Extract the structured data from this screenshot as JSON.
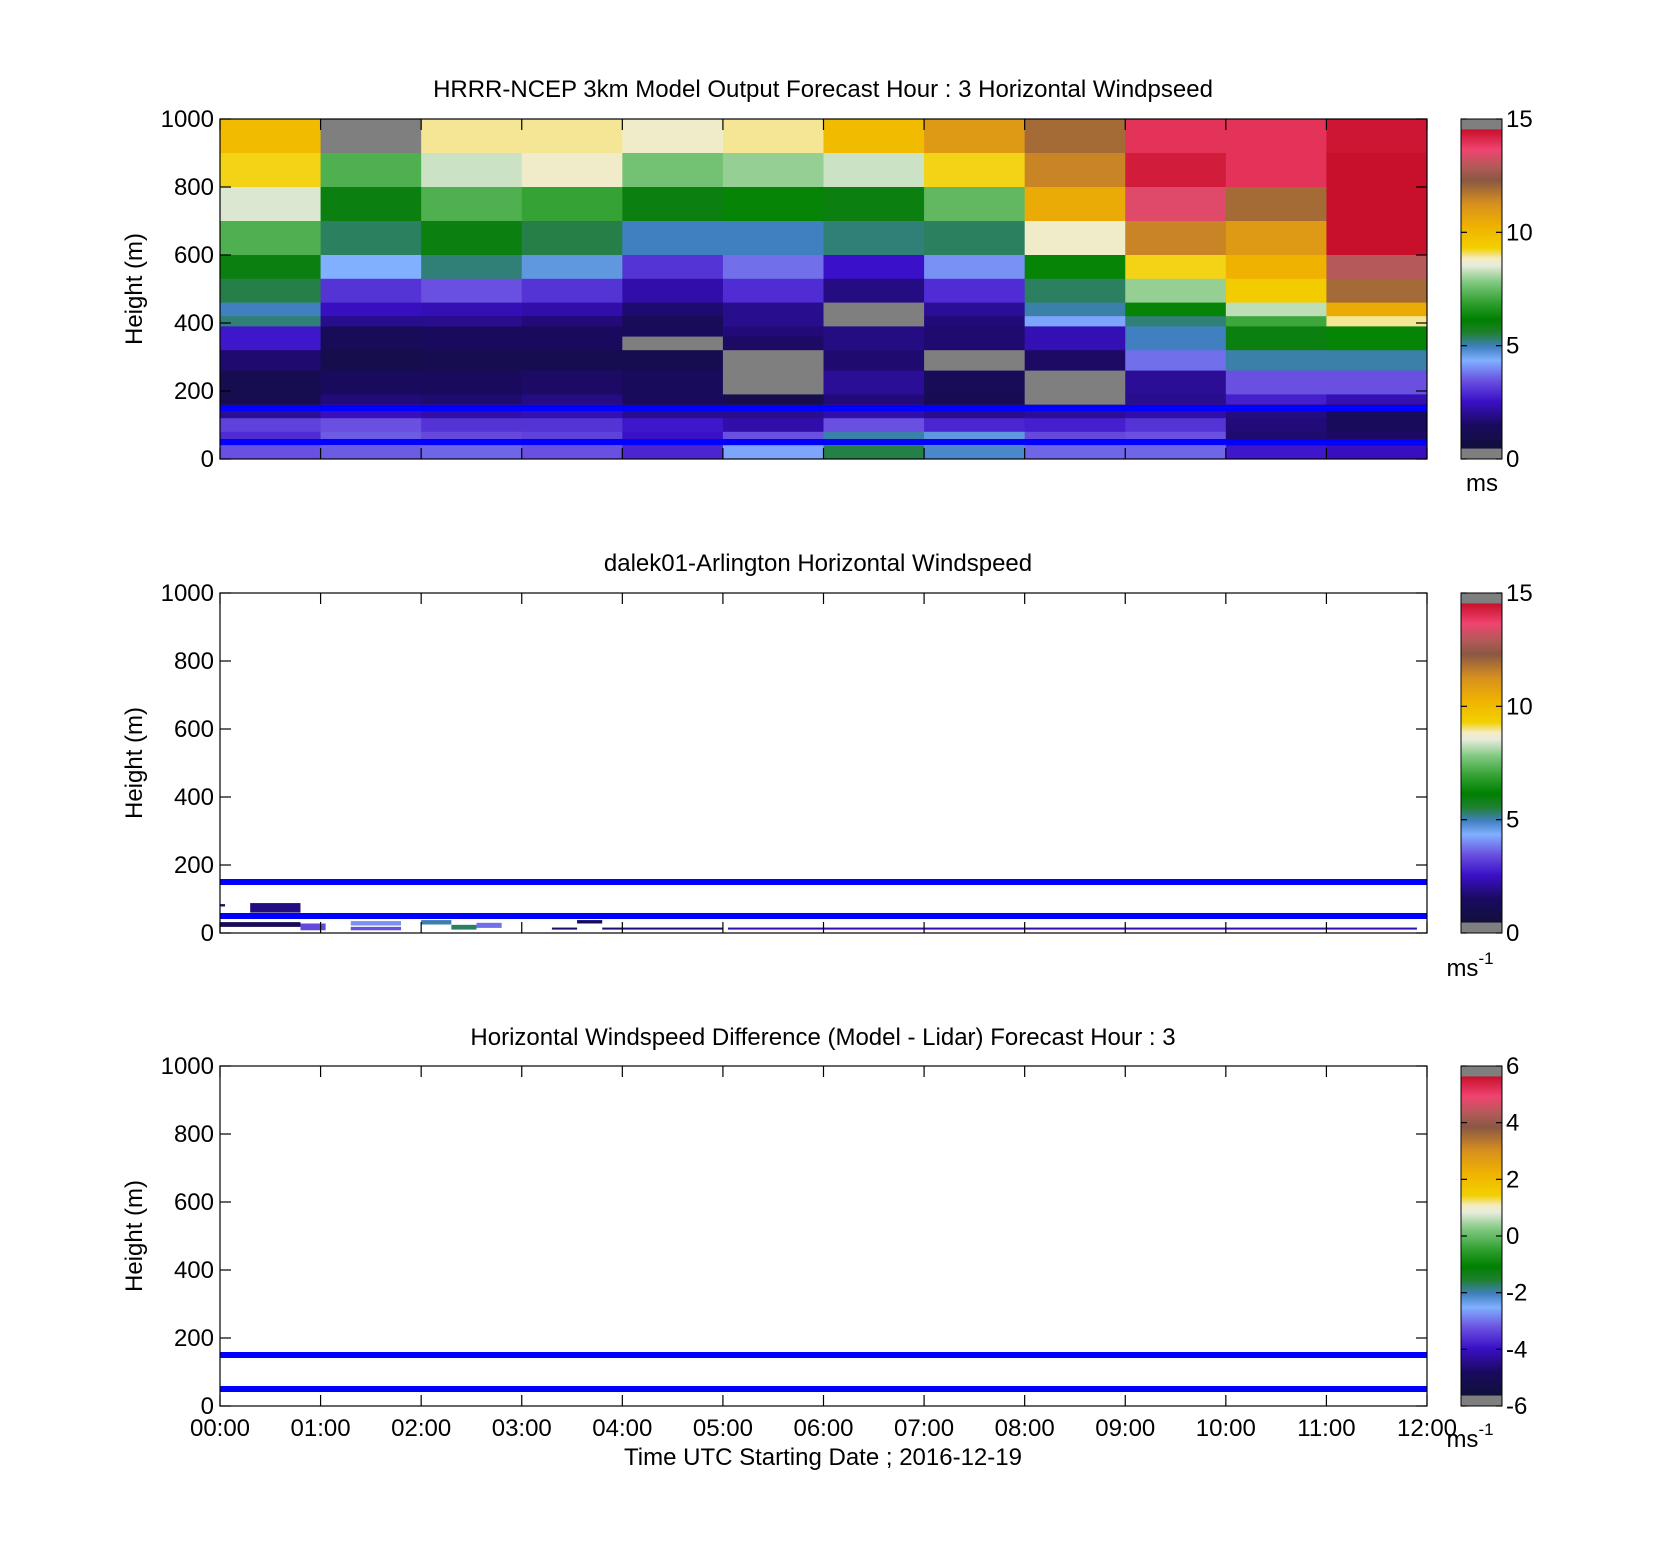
{
  "figure": {
    "xlabel": "Time UTC  Starting Date ; 2016-12-19",
    "x_ticks": [
      "00:00",
      "01:00",
      "02:00",
      "03:00",
      "04:00",
      "05:00",
      "06:00",
      "07:00",
      "08:00",
      "09:00",
      "10:00",
      "11:00",
      "12:00"
    ],
    "reference_line_color": "#0000ff"
  },
  "chart_data": [
    {
      "type": "heatmap",
      "title": "HRRR-NCEP 3km Model Output   Forecast Hour : 3 Horizontal Windpseed",
      "ylabel": "Height (m)",
      "xlim": [
        "00:00",
        "12:00"
      ],
      "ylim": [
        0,
        1000
      ],
      "y_ticks": [
        0,
        200,
        400,
        600,
        800,
        1000
      ],
      "colorbar": {
        "min": 0,
        "max": 15,
        "ticks": [
          0,
          5,
          10,
          15
        ],
        "unit": "ms"
      },
      "reference_lines_m": [
        50,
        150
      ],
      "columns": [
        "00:00",
        "01:00",
        "02:00",
        "03:00",
        "04:00",
        "05:00",
        "06:00",
        "07:00",
        "08:00",
        "09:00",
        "10:00",
        "11:00"
      ],
      "height_bins_m": [
        [
          950,
          1000
        ],
        [
          900,
          950
        ],
        [
          850,
          900
        ],
        [
          800,
          850
        ],
        [
          750,
          800
        ],
        [
          700,
          750
        ],
        [
          650,
          700
        ],
        [
          600,
          650
        ],
        [
          560,
          600
        ],
        [
          530,
          560
        ],
        [
          490,
          530
        ],
        [
          460,
          490
        ],
        [
          420,
          460
        ],
        [
          390,
          420
        ],
        [
          360,
          390
        ],
        [
          320,
          360
        ],
        [
          290,
          320
        ],
        [
          260,
          290
        ],
        [
          220,
          260
        ],
        [
          190,
          220
        ],
        [
          160,
          190
        ],
        [
          120,
          160
        ],
        [
          80,
          120
        ],
        [
          40,
          80
        ],
        [
          0,
          40
        ]
      ],
      "values": [
        [
          9.5,
          15.5,
          8.5,
          8.5,
          8.3,
          8.5,
          9.5,
          10.5,
          11.5,
          13.5,
          13.5,
          14.0
        ],
        [
          9.5,
          15.5,
          8.5,
          8.5,
          8.3,
          8.5,
          9.5,
          10.5,
          11.5,
          13.5,
          13.5,
          14.0
        ],
        [
          8.8,
          6.8,
          7.9,
          8.3,
          7.2,
          7.5,
          7.9,
          8.8,
          11.0,
          13.9,
          13.5,
          14.3
        ],
        [
          8.8,
          6.8,
          7.9,
          8.3,
          7.2,
          7.5,
          7.9,
          8.8,
          11.0,
          13.9,
          13.5,
          14.3
        ],
        [
          8.0,
          5.5,
          6.8,
          6.5,
          5.5,
          5.8,
          5.5,
          7.0,
          10.0,
          13.0,
          11.5,
          14.3
        ],
        [
          8.0,
          5.5,
          6.8,
          6.5,
          5.5,
          5.8,
          5.5,
          7.0,
          10.0,
          13.0,
          11.5,
          14.3
        ],
        [
          6.8,
          4.9,
          5.5,
          5.0,
          4.5,
          4.5,
          4.8,
          4.9,
          8.3,
          11.0,
          10.5,
          14.3
        ],
        [
          6.8,
          4.9,
          5.5,
          5.0,
          4.5,
          4.5,
          4.8,
          4.9,
          8.3,
          11.0,
          10.5,
          14.3
        ],
        [
          5.5,
          3.9,
          4.8,
          4.2,
          2.6,
          3.3,
          2.1,
          3.6,
          5.8,
          8.8,
          9.8,
          12.5
        ],
        [
          5.5,
          3.9,
          4.8,
          4.2,
          2.6,
          3.3,
          2.1,
          3.6,
          5.8,
          8.8,
          9.8,
          12.5
        ],
        [
          5.0,
          2.6,
          3.0,
          2.6,
          1.8,
          2.5,
          1.4,
          2.5,
          4.9,
          7.5,
          9.0,
          11.5
        ],
        [
          5.0,
          2.6,
          3.0,
          2.6,
          1.8,
          2.5,
          1.4,
          2.5,
          4.9,
          7.5,
          9.0,
          11.5
        ],
        [
          4.5,
          2.0,
          1.9,
          1.8,
          1.2,
          1.5,
          15.5,
          1.6,
          4.6,
          5.8,
          7.8,
          10.0
        ],
        [
          4.8,
          1.5,
          1.5,
          1.3,
          0.8,
          1.5,
          15.5,
          1.3,
          3.8,
          4.8,
          6.6,
          8.5
        ],
        [
          2.2,
          0.8,
          1.0,
          1.0,
          0.9,
          1.3,
          1.4,
          1.2,
          1.9,
          4.5,
          5.5,
          5.8
        ],
        [
          2.2,
          0.8,
          1.0,
          1.0,
          15.5,
          1.1,
          1.4,
          1.2,
          1.9,
          4.5,
          5.5,
          5.8
        ],
        [
          1.2,
          0.5,
          0.6,
          0.6,
          0.6,
          15.5,
          1.2,
          15.5,
          1.1,
          3.3,
          4.6,
          4.6
        ],
        [
          1.2,
          0.5,
          0.6,
          0.6,
          0.6,
          15.5,
          1.2,
          15.5,
          1.1,
          3.3,
          4.6,
          4.6
        ],
        [
          0.6,
          1.0,
          1.0,
          1.1,
          0.9,
          15.5,
          1.6,
          0.8,
          15.5,
          1.6,
          3.0,
          3.0
        ],
        [
          0.6,
          1.0,
          1.0,
          1.1,
          0.9,
          15.5,
          1.6,
          0.8,
          15.5,
          1.6,
          3.0,
          3.0
        ],
        [
          0.6,
          1.3,
          1.2,
          1.4,
          1.0,
          0.5,
          1.3,
          0.7,
          15.5,
          1.5,
          2.3,
          1.9
        ],
        [
          1.6,
          2.0,
          1.8,
          1.9,
          1.5,
          1.5,
          1.8,
          1.5,
          1.6,
          1.8,
          1.4,
          0.9
        ],
        [
          2.8,
          3.0,
          2.6,
          2.6,
          2.2,
          1.8,
          3.0,
          2.4,
          2.3,
          2.6,
          1.3,
          0.9
        ],
        [
          2.5,
          3.1,
          2.9,
          2.8,
          2.1,
          3.0,
          4.6,
          4.2,
          2.9,
          3.0,
          1.2,
          1.1
        ],
        [
          3.0,
          3.1,
          3.2,
          3.0,
          2.4,
          3.8,
          5.0,
          4.4,
          3.2,
          3.2,
          2.2,
          2.0
        ]
      ]
    },
    {
      "type": "heatmap",
      "title": "dalek01-Arlington  Horizontal Windspeed",
      "ylabel": "Height (m)",
      "xlim": [
        "00:00",
        "12:00"
      ],
      "ylim": [
        0,
        1000
      ],
      "y_ticks": [
        0,
        200,
        400,
        600,
        800,
        1000
      ],
      "colorbar": {
        "min": 0,
        "max": 15,
        "ticks": [
          0,
          5,
          10,
          15
        ],
        "unit": "ms",
        "unit_exponent": "-1"
      },
      "reference_lines_m": [
        50,
        150
      ],
      "segments": [
        {
          "t_start": 0.0,
          "t_end": 0.05,
          "h_start": 78,
          "h_end": 85,
          "value": 1.2
        },
        {
          "t_start": 0.3,
          "t_end": 0.8,
          "h_start": 60,
          "h_end": 88,
          "value": 1.4
        },
        {
          "t_start": 0.0,
          "t_end": 0.8,
          "h_start": 18,
          "h_end": 32,
          "value": 0.8
        },
        {
          "t_start": 0.8,
          "t_end": 1.05,
          "h_start": 8,
          "h_end": 28,
          "value": 2.9
        },
        {
          "t_start": 1.3,
          "t_end": 1.8,
          "h_start": 8,
          "h_end": 18,
          "value": 3.0
        },
        {
          "t_start": 1.3,
          "t_end": 1.8,
          "h_start": 22,
          "h_end": 35,
          "value": 3.6
        },
        {
          "t_start": 2.0,
          "t_end": 2.3,
          "h_start": 25,
          "h_end": 38,
          "value": 4.6
        },
        {
          "t_start": 2.3,
          "t_end": 2.55,
          "h_start": 10,
          "h_end": 24,
          "value": 4.9
        },
        {
          "t_start": 2.55,
          "t_end": 2.8,
          "h_start": 15,
          "h_end": 30,
          "value": 3.3
        },
        {
          "t_start": 3.3,
          "t_end": 3.55,
          "h_start": 10,
          "h_end": 16,
          "value": 1.2
        },
        {
          "t_start": 3.55,
          "t_end": 3.8,
          "h_start": 28,
          "h_end": 38,
          "value": 1.0
        },
        {
          "t_start": 3.8,
          "t_end": 5.0,
          "h_start": 10,
          "h_end": 16,
          "value": 1.3
        },
        {
          "t_start": 5.05,
          "t_end": 11.9,
          "h_start": 10,
          "h_end": 16,
          "value": 1.9
        }
      ]
    },
    {
      "type": "heatmap",
      "title": "Horizontal Windspeed Difference (Model - Lidar) Forecast Hour : 3",
      "ylabel": "Height (m)",
      "xlabel": "Time UTC  Starting Date ; 2016-12-19",
      "xlim": [
        "00:00",
        "12:00"
      ],
      "ylim": [
        0,
        1000
      ],
      "y_ticks": [
        0,
        200,
        400,
        600,
        800,
        1000
      ],
      "colorbar": {
        "min": -6,
        "max": 6,
        "ticks": [
          -6,
          -4,
          -2,
          0,
          2,
          4,
          6
        ],
        "unit": "ms",
        "unit_exponent": "-1"
      },
      "reference_lines_m": [
        50,
        150
      ],
      "segments": []
    }
  ]
}
